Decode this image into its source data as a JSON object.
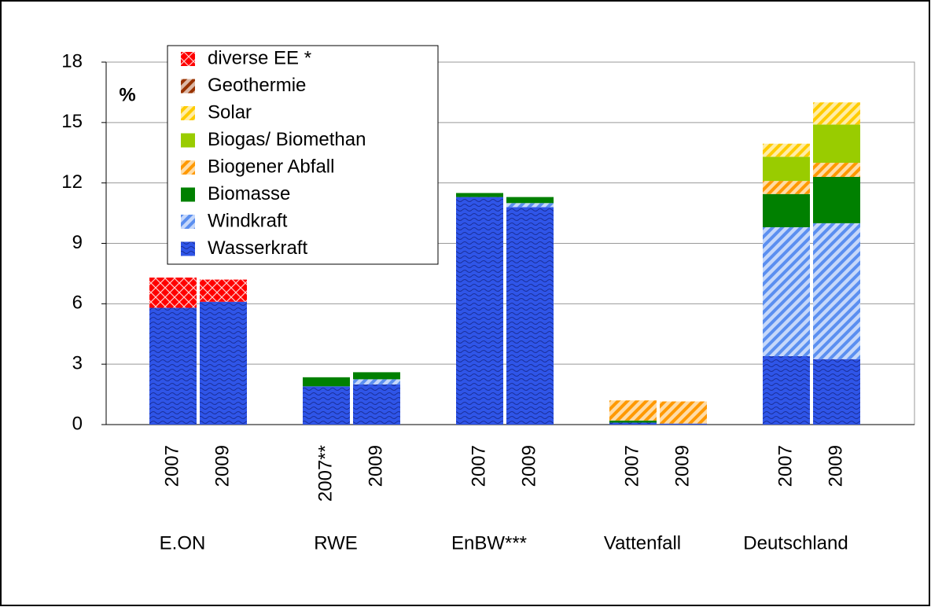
{
  "chart_data": {
    "type": "bar",
    "stacked": true,
    "y_label": "%",
    "categories": [
      "2007",
      "2009",
      "2007**",
      "2009",
      "2007",
      "2009",
      "2007",
      "2009",
      "2007",
      "2009"
    ],
    "groups": [
      "E.ON",
      "RWE",
      "EnBW***",
      "Vattenfall",
      "Deutschland"
    ],
    "series": [
      {
        "name": "Wasserkraft",
        "color": "#2f55e8",
        "pattern": "waves",
        "values": [
          5.8,
          6.1,
          1.9,
          2.0,
          11.3,
          10.8,
          0.1,
          0.05,
          3.4,
          3.25
        ]
      },
      {
        "name": "Windkraft",
        "color": "#5b8ff0",
        "pattern": "stripes",
        "values": [
          0,
          0,
          0,
          0.25,
          0,
          0.2,
          0,
          0,
          6.4,
          6.75
        ]
      },
      {
        "name": "Biomasse",
        "color": "#008000",
        "pattern": "solid",
        "values": [
          0,
          0,
          0.45,
          0.35,
          0.2,
          0.3,
          0.1,
          0,
          1.65,
          2.3
        ]
      },
      {
        "name": "Biogener Abfall",
        "color": "#ff9900",
        "pattern": "stripes",
        "values": [
          0,
          0,
          0,
          0,
          0,
          0,
          1.0,
          1.1,
          0.65,
          0.7
        ]
      },
      {
        "name": "Biogas/ Biomethan",
        "color": "#99cc00",
        "pattern": "solid",
        "values": [
          0,
          0,
          0,
          0,
          0,
          0,
          0,
          0,
          1.2,
          1.9
        ]
      },
      {
        "name": "Solar",
        "color": "#ffcc00",
        "pattern": "stripes",
        "values": [
          0,
          0,
          0,
          0,
          0,
          0,
          0,
          0,
          0.65,
          1.1
        ]
      },
      {
        "name": "Geothermie",
        "color": "#993300",
        "pattern": "stripes",
        "values": [
          0,
          0,
          0,
          0,
          0,
          0,
          0,
          0,
          0,
          0
        ]
      },
      {
        "name": "diverse EE *",
        "color": "#ff0000",
        "pattern": "hatch",
        "values": [
          1.5,
          1.1,
          0,
          0,
          0,
          0,
          0,
          0,
          0,
          0
        ]
      }
    ],
    "ylim": [
      0,
      18
    ],
    "yticks": [
      0,
      3,
      6,
      9,
      12,
      15,
      18
    ],
    "grid": true
  }
}
